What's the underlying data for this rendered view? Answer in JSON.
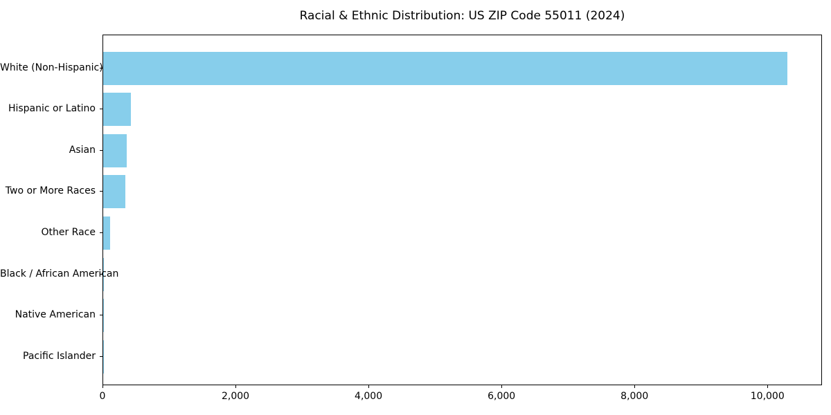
{
  "figure": {
    "background": "#ffffff"
  },
  "chart_data": {
    "type": "bar",
    "orientation": "horizontal",
    "title": "Racial & Ethnic Distribution: US ZIP Code 55011 (2024)",
    "categories": [
      "White (Non-Hispanic)",
      "Hispanic or Latino",
      "Asian",
      "Two or More Races",
      "Other Race",
      "Black / African American",
      "Native American",
      "Pacific Islander"
    ],
    "values": [
      10290,
      420,
      350,
      335,
      100,
      15,
      10,
      2
    ],
    "xlabel": "",
    "ylabel": "",
    "xlim": [
      0,
      10820
    ],
    "xticks": [
      0,
      2000,
      4000,
      6000,
      8000,
      10000
    ],
    "xtick_labels": [
      "0",
      "2,000",
      "4,000",
      "6,000",
      "8,000",
      "10,000"
    ],
    "bar_color": "#87ceeb",
    "grid": false,
    "legend": null
  }
}
